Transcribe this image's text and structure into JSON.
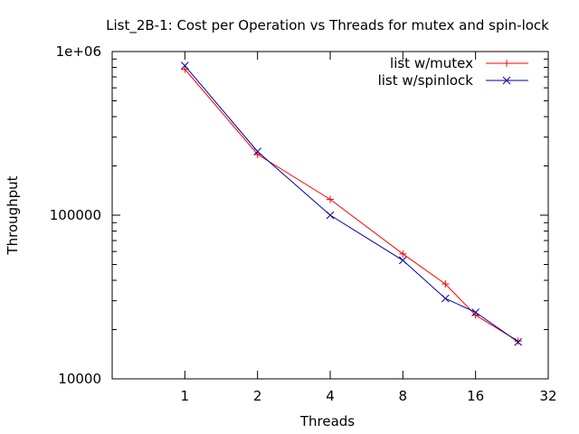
{
  "chart_data": {
    "type": "line",
    "title": "List_2B-1: Cost per Operation vs Threads for mutex and spin-lock",
    "xlabel": "Threads",
    "ylabel": "Throughput",
    "x_scale": "log2",
    "y_scale": "log10",
    "xlim": [
      0.5,
      32
    ],
    "ylim": [
      10000,
      1000000
    ],
    "x_ticks": [
      1,
      2,
      4,
      8,
      16,
      32
    ],
    "x_tick_labels": [
      "1",
      "2",
      "4",
      "8",
      "16",
      "32"
    ],
    "y_ticks": [
      10000,
      100000,
      1000000
    ],
    "y_tick_labels": [
      "10000",
      "100000",
      "1e+06"
    ],
    "grid": false,
    "legend_position": "top-right",
    "series": [
      {
        "name": "list w/mutex",
        "color": "#ff0000",
        "marker": "plus",
        "x": [
          1,
          2,
          4,
          8,
          12,
          16,
          24
        ],
        "y": [
          780000,
          235000,
          125000,
          58000,
          38000,
          24500,
          17000
        ]
      },
      {
        "name": "list w/spinlock",
        "color": "#0000a0",
        "marker": "cross",
        "x": [
          1,
          2,
          4,
          8,
          12,
          16,
          24
        ],
        "y": [
          820000,
          245000,
          100000,
          53000,
          31000,
          25500,
          16800
        ]
      }
    ]
  }
}
